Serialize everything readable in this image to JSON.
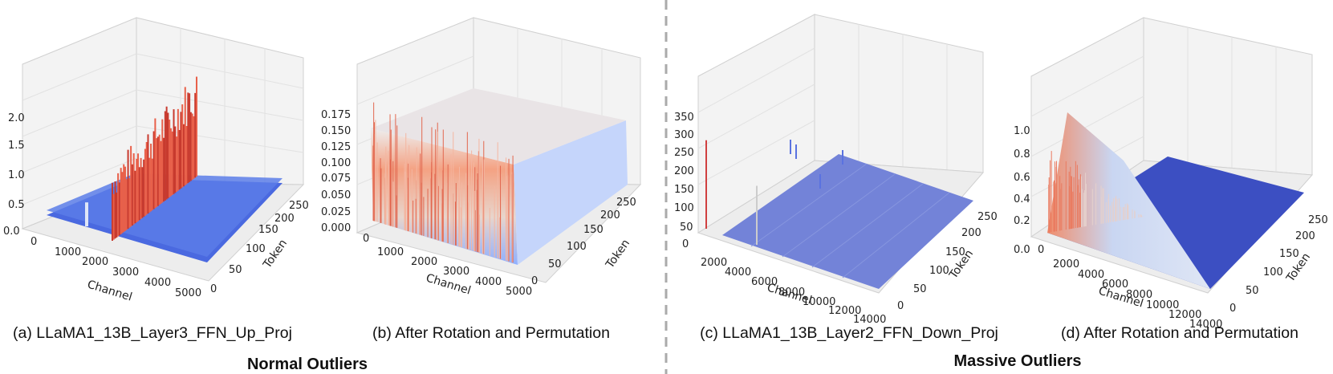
{
  "chart_data": [
    {
      "type": "surface3d",
      "caption": "(a) LLaMA1_13B_Layer3_FFN_Up_Proj",
      "xlabel": "Channel",
      "ylabel": "Token",
      "zlabel": "",
      "xticks": [
        "0",
        "1000",
        "2000",
        "3000",
        "4000",
        "5000"
      ],
      "yticks": [
        "0",
        "50",
        "100",
        "150",
        "200",
        "250"
      ],
      "zticks": [
        "0.0",
        "0.5",
        "1.0",
        "1.5",
        "2.0"
      ],
      "xlim": [
        0,
        5120
      ],
      "ylim": [
        0,
        256
      ],
      "zlim": [
        0,
        2.3
      ],
      "base_level": 0.15,
      "outlier_bands": [
        {
          "x_start": 2500,
          "x_end": 3300,
          "peak": 2.2
        },
        {
          "x_start": 1550,
          "x_end": 1600,
          "peak": 0.35
        }
      ]
    },
    {
      "type": "surface3d",
      "caption": "(b) After Rotation and Permutation",
      "xlabel": "Channel",
      "ylabel": "Token",
      "zlabel": "",
      "xticks": [
        "0",
        "1000",
        "2000",
        "3000",
        "4000",
        "5000"
      ],
      "yticks": [
        "0",
        "50",
        "100",
        "150",
        "200",
        "250"
      ],
      "zticks": [
        "0.000",
        "0.025",
        "0.050",
        "0.075",
        "0.100",
        "0.125",
        "0.150",
        "0.175"
      ],
      "xlim": [
        0,
        5120
      ],
      "ylim": [
        0,
        256
      ],
      "zlim": [
        0,
        0.19
      ],
      "base_level": 0.1,
      "outlier_bands": []
    },
    {
      "type": "surface3d",
      "caption": "(c) LLaMA1_13B_Layer2_FFN_Down_Proj",
      "xlabel": "Channel",
      "ylabel": "Token",
      "zlabel": "",
      "xticks": [
        "2000",
        "4000",
        "6000",
        "8000",
        "10000",
        "12000",
        "14000"
      ],
      "yticks": [
        "0",
        "50",
        "100",
        "150",
        "200",
        "250"
      ],
      "zticks": [
        "0",
        "50",
        "100",
        "150",
        "200",
        "250",
        "300",
        "350"
      ],
      "xlim": [
        0,
        13824
      ],
      "ylim": [
        0,
        256
      ],
      "zlim": [
        0,
        370
      ],
      "base_level": 2,
      "outlier_bands": [
        {
          "x_start": 1500,
          "x_end": 1550,
          "peak": 300
        },
        {
          "x_start": 6800,
          "x_end": 6850,
          "peak": 100
        }
      ]
    },
    {
      "type": "surface3d",
      "caption": "(d) After Rotation and Permutation",
      "xlabel": "Channel",
      "ylabel": "Token",
      "zlabel": "",
      "xticks": [
        "0",
        "2000",
        "4000",
        "6000",
        "8000",
        "10000",
        "12000",
        "14000"
      ],
      "yticks": [
        "0",
        "50",
        "100",
        "150",
        "200",
        "250"
      ],
      "zticks": [
        "0.0",
        "0.2",
        "0.4",
        "0.6",
        "0.8",
        "1.0"
      ],
      "xlim": [
        0,
        13824
      ],
      "ylim": [
        0,
        256
      ],
      "zlim": [
        0,
        1.1
      ],
      "base_level": 0.03,
      "outlier_bands": [
        {
          "x_start": 0,
          "x_end": 4000,
          "peak": 1.0
        }
      ]
    }
  ],
  "groups": [
    "Normal Outliers",
    "Massive Outliers"
  ],
  "colors": {
    "low": "#3b4cc0",
    "mid": "#dddddd",
    "high": "#b40426",
    "divider": "#aaaaaa"
  }
}
